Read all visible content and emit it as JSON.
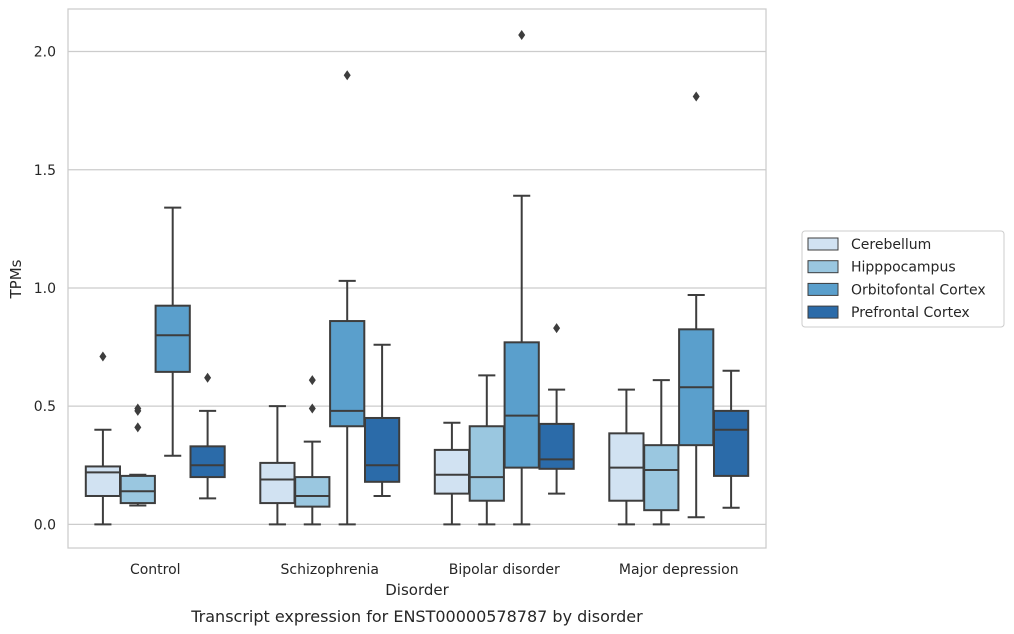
{
  "chart_data": {
    "type": "box",
    "caption": "Transcript expression for ENST00000578787 by disorder",
    "xlabel": "Disorder",
    "ylabel": "TPMs",
    "ylim": [
      -0.1,
      2.18
    ],
    "yticks": [
      "0.0",
      "0.5",
      "1.0",
      "1.5",
      "2.0"
    ],
    "ytick_values": [
      0.0,
      0.5,
      1.0,
      1.5,
      2.0
    ],
    "grid": "horizontal",
    "legend_position": "right",
    "categories": [
      "Control",
      "Schizophrenia",
      "Bipolar disorder",
      "Major depression"
    ],
    "series": [
      {
        "name": "Cerebellum",
        "color": "#d1e2f2",
        "boxes": [
          {
            "whisker_low": 0.0,
            "q1": 0.12,
            "median": 0.22,
            "q3": 0.245,
            "whisker_high": 0.4,
            "outliers": [
              0.71
            ]
          },
          {
            "whisker_low": 0.0,
            "q1": 0.09,
            "median": 0.19,
            "q3": 0.26,
            "whisker_high": 0.5,
            "outliers": []
          },
          {
            "whisker_low": 0.0,
            "q1": 0.13,
            "median": 0.21,
            "q3": 0.315,
            "whisker_high": 0.43,
            "outliers": []
          },
          {
            "whisker_low": 0.0,
            "q1": 0.1,
            "median": 0.24,
            "q3": 0.385,
            "whisker_high": 0.57,
            "outliers": []
          }
        ]
      },
      {
        "name": "Hipppocampus",
        "color": "#9ac7e0",
        "boxes": [
          {
            "whisker_low": 0.08,
            "q1": 0.09,
            "median": 0.14,
            "q3": 0.205,
            "whisker_high": 0.21,
            "outliers": [
              0.41,
              0.48,
              0.49
            ]
          },
          {
            "whisker_low": 0.0,
            "q1": 0.075,
            "median": 0.12,
            "q3": 0.2,
            "whisker_high": 0.35,
            "outliers": [
              0.49,
              0.61
            ]
          },
          {
            "whisker_low": 0.0,
            "q1": 0.1,
            "median": 0.2,
            "q3": 0.415,
            "whisker_high": 0.63,
            "outliers": []
          },
          {
            "whisker_low": 0.0,
            "q1": 0.06,
            "median": 0.23,
            "q3": 0.335,
            "whisker_high": 0.61,
            "outliers": []
          }
        ]
      },
      {
        "name": "Orbitofontal Cortex",
        "color": "#5a9fcc",
        "boxes": [
          {
            "whisker_low": 0.29,
            "q1": 0.645,
            "median": 0.8,
            "q3": 0.925,
            "whisker_high": 1.34,
            "outliers": []
          },
          {
            "whisker_low": 0.0,
            "q1": 0.415,
            "median": 0.48,
            "q3": 0.86,
            "whisker_high": 1.03,
            "outliers": [
              1.9
            ]
          },
          {
            "whisker_low": 0.0,
            "q1": 0.24,
            "median": 0.46,
            "q3": 0.77,
            "whisker_high": 1.39,
            "outliers": [
              2.07
            ]
          },
          {
            "whisker_low": 0.03,
            "q1": 0.335,
            "median": 0.58,
            "q3": 0.825,
            "whisker_high": 0.97,
            "outliers": [
              1.81
            ]
          }
        ]
      },
      {
        "name": "Prefrontal Cortex",
        "color": "#2b6ba9",
        "boxes": [
          {
            "whisker_low": 0.11,
            "q1": 0.2,
            "median": 0.25,
            "q3": 0.33,
            "whisker_high": 0.48,
            "outliers": [
              0.62
            ]
          },
          {
            "whisker_low": 0.12,
            "q1": 0.18,
            "median": 0.25,
            "q3": 0.45,
            "whisker_high": 0.76,
            "outliers": []
          },
          {
            "whisker_low": 0.13,
            "q1": 0.235,
            "median": 0.275,
            "q3": 0.425,
            "whisker_high": 0.57,
            "outliers": [
              0.83
            ]
          },
          {
            "whisker_low": 0.07,
            "q1": 0.205,
            "median": 0.4,
            "q3": 0.48,
            "whisker_high": 0.65,
            "outliers": []
          }
        ]
      }
    ]
  }
}
